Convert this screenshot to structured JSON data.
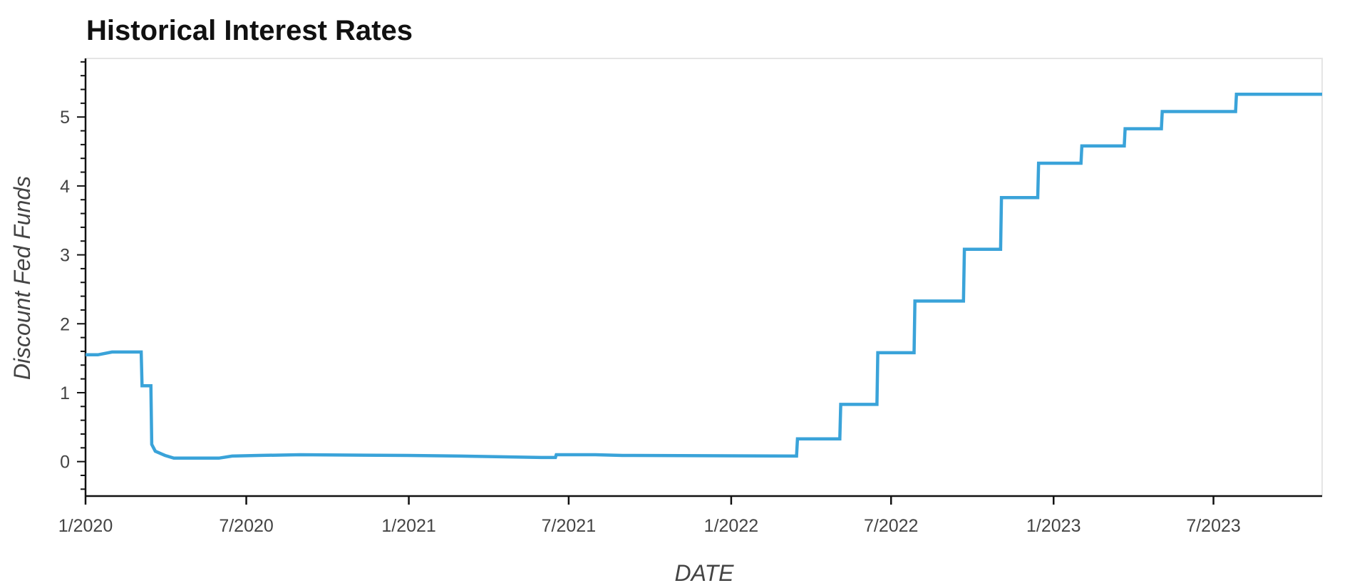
{
  "chart_data": {
    "type": "line",
    "title": "Historical Interest Rates",
    "xlabel": "DATE",
    "ylabel": "Discount Fed Funds",
    "x_tick_labels": [
      "1/2020",
      "7/2020",
      "1/2021",
      "7/2021",
      "1/2022",
      "7/2022",
      "1/2023",
      "7/2023"
    ],
    "x_tick_dates": [
      "2020-01-01",
      "2020-07-01",
      "2021-01-01",
      "2021-07-01",
      "2022-01-01",
      "2022-07-01",
      "2023-01-01",
      "2023-07-01"
    ],
    "y_ticks": [
      0,
      1,
      2,
      3,
      4,
      5
    ],
    "xlim": [
      "2020-01-01",
      "2023-11-01"
    ],
    "ylim": [
      -0.5,
      5.85
    ],
    "grid": false,
    "series": [
      {
        "color": "#3aa3d9",
        "points": [
          [
            "2020-01-01",
            1.55
          ],
          [
            "2020-01-15",
            1.55
          ],
          [
            "2020-01-31",
            1.59
          ],
          [
            "2020-02-29",
            1.59
          ],
          [
            "2020-03-04",
            1.59
          ],
          [
            "2020-03-05",
            1.1
          ],
          [
            "2020-03-15",
            1.1
          ],
          [
            "2020-03-16",
            0.25
          ],
          [
            "2020-03-20",
            0.15
          ],
          [
            "2020-03-31",
            0.09
          ],
          [
            "2020-04-10",
            0.05
          ],
          [
            "2020-05-31",
            0.05
          ],
          [
            "2020-06-15",
            0.08
          ],
          [
            "2020-07-15",
            0.09
          ],
          [
            "2020-08-31",
            0.1
          ],
          [
            "2020-12-31",
            0.09
          ],
          [
            "2021-02-28",
            0.08
          ],
          [
            "2021-05-31",
            0.06
          ],
          [
            "2021-06-16",
            0.06
          ],
          [
            "2021-06-17",
            0.1
          ],
          [
            "2021-07-31",
            0.1
          ],
          [
            "2021-08-31",
            0.09
          ],
          [
            "2022-03-16",
            0.08
          ],
          [
            "2022-03-17",
            0.33
          ],
          [
            "2022-05-04",
            0.33
          ],
          [
            "2022-05-05",
            0.83
          ],
          [
            "2022-06-15",
            0.83
          ],
          [
            "2022-06-16",
            1.58
          ],
          [
            "2022-07-27",
            1.58
          ],
          [
            "2022-07-28",
            2.33
          ],
          [
            "2022-09-21",
            2.33
          ],
          [
            "2022-09-22",
            3.08
          ],
          [
            "2022-11-02",
            3.08
          ],
          [
            "2022-11-03",
            3.83
          ],
          [
            "2022-12-14",
            3.83
          ],
          [
            "2022-12-15",
            4.33
          ],
          [
            "2023-02-01",
            4.33
          ],
          [
            "2023-02-02",
            4.58
          ],
          [
            "2023-03-22",
            4.58
          ],
          [
            "2023-03-23",
            4.83
          ],
          [
            "2023-05-03",
            4.83
          ],
          [
            "2023-05-04",
            5.08
          ],
          [
            "2023-07-26",
            5.08
          ],
          [
            "2023-07-27",
            5.33
          ],
          [
            "2023-11-01",
            5.33
          ]
        ]
      }
    ]
  }
}
